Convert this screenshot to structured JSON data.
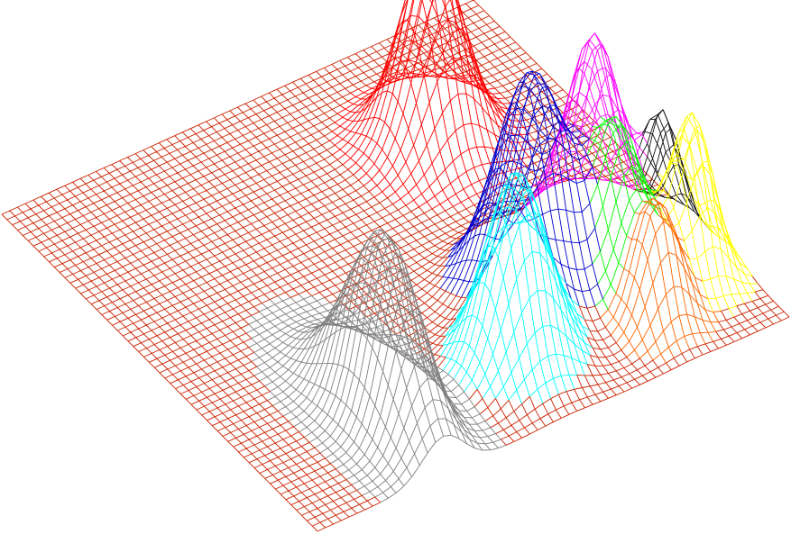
{
  "chart_data": {
    "type": "surface-wireframe",
    "description_in_pixels": "none",
    "grid": {
      "nu": 60,
      "nv": 60,
      "u_range": [
        0,
        60
      ],
      "v_range": [
        0,
        60
      ]
    },
    "base_plane_color": "#cc2200",
    "background": "#ffffff",
    "peaks": [
      {
        "color": "#808080",
        "center": [
          16,
          11
        ],
        "height": 0.68,
        "sigma": [
          2.6,
          6.2
        ],
        "footprint": 9.0
      },
      {
        "color": "#00ffff",
        "center": [
          32,
          10
        ],
        "height": 0.7,
        "sigma": [
          3.4,
          3.4
        ],
        "footprint": 7.5
      },
      {
        "color": "#ff6600",
        "center": [
          48,
          7
        ],
        "height": 0.42,
        "sigma": [
          2.4,
          2.4
        ],
        "footprint": 6.0
      },
      {
        "color": "#ffff00",
        "center": [
          55,
          11
        ],
        "height": 0.6,
        "sigma": [
          2.2,
          2.6
        ],
        "footprint": 6.0
      },
      {
        "color": "#00ff00",
        "center": [
          48,
          14
        ],
        "height": 0.52,
        "sigma": [
          2.4,
          2.8
        ],
        "footprint": 6.5
      },
      {
        "color": "#0000cc",
        "center": [
          40,
          19
        ],
        "height": 0.8,
        "sigma": [
          4.0,
          4.0
        ],
        "footprint": 9.0
      },
      {
        "color": "#111111",
        "center": [
          56,
          18
        ],
        "height": 0.42,
        "sigma": [
          1.8,
          2.2
        ],
        "footprint": 5.0
      },
      {
        "color": "#ff00ff",
        "center": [
          50,
          22
        ],
        "height": 0.72,
        "sigma": [
          2.8,
          3.2
        ],
        "footprint": 7.0
      },
      {
        "color": "#ff0000",
        "center": [
          44,
          44
        ],
        "height": 0.72,
        "sigma": [
          3.4,
          3.6
        ],
        "footprint": 10.0
      }
    ]
  }
}
